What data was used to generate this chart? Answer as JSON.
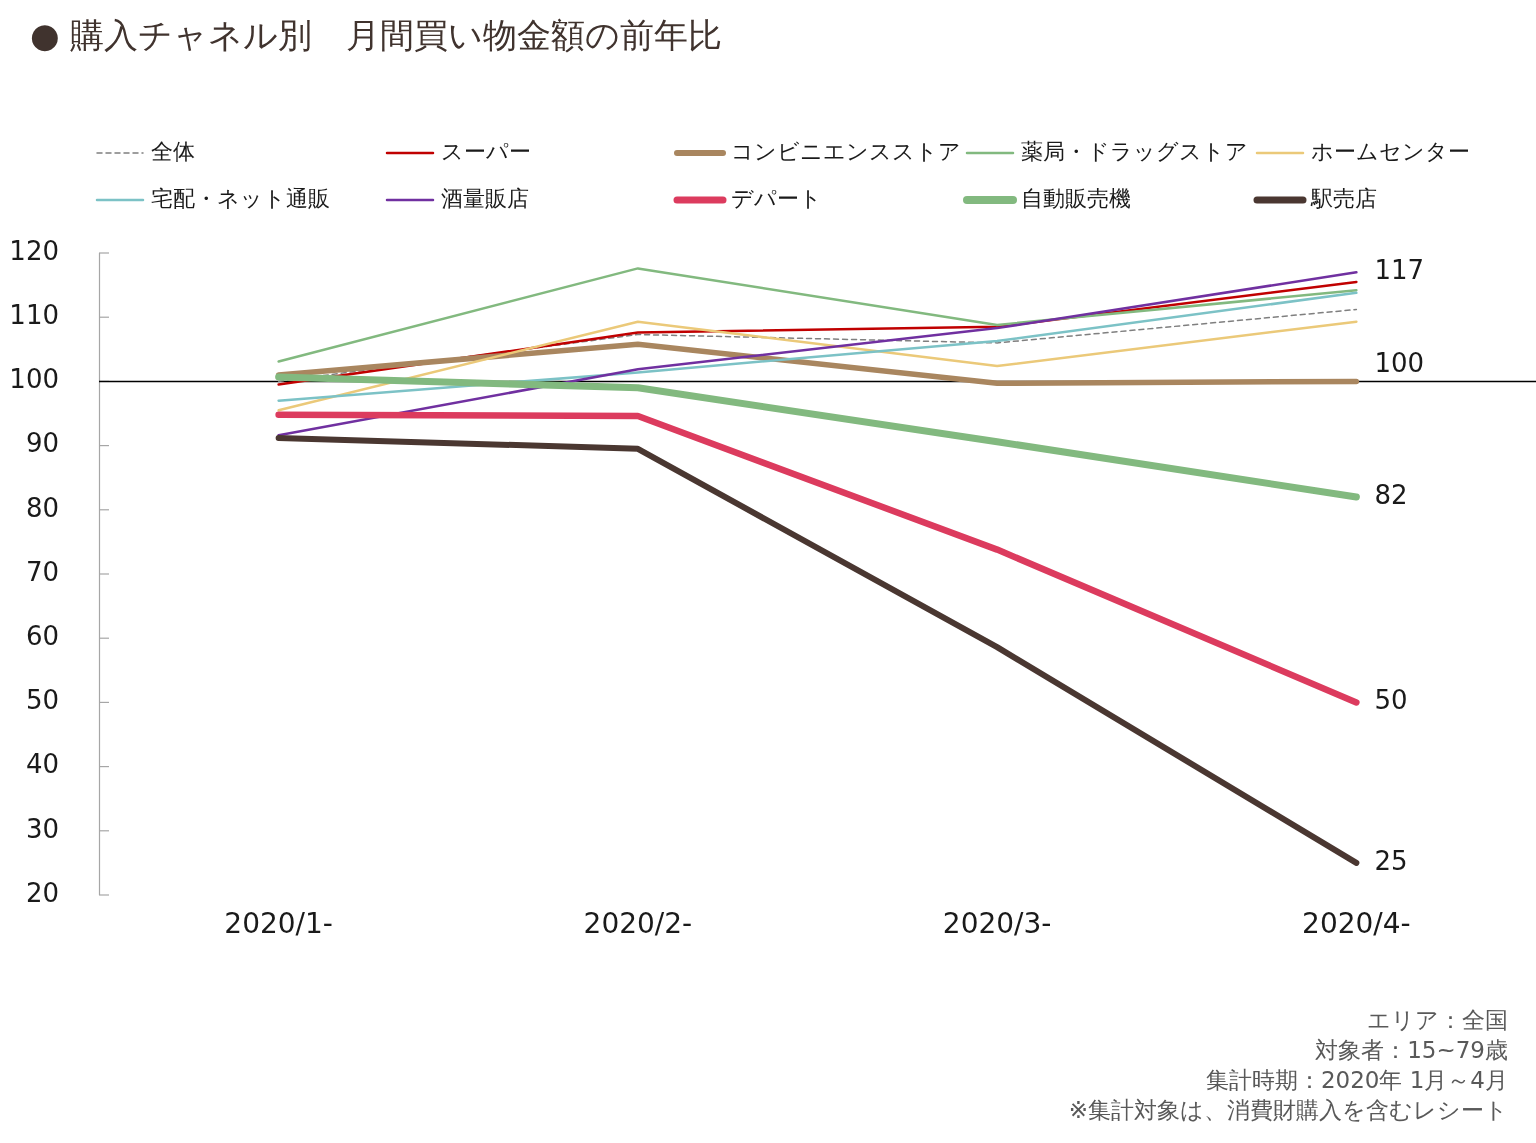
{
  "chart_data": {
    "type": "line",
    "title": "● 購入チャネル別　月間買い物金額の前年比",
    "categories": [
      "2020/1-",
      "2020/2-",
      "2020/3-",
      "2020/4-"
    ],
    "series": [
      {
        "name": "全体",
        "color": "#7f7f7f",
        "line_style": "dashed",
        "values": [
          100,
          107.3,
          106.0,
          111.2
        ]
      },
      {
        "name": "スーパー",
        "color": "#c00000",
        "values": [
          99.5,
          107.6,
          108.5,
          115.5
        ]
      },
      {
        "name": "コンビニエンスストア",
        "color": "#a9865f",
        "values": [
          101.0,
          105.8,
          99.7,
          100
        ],
        "value_labels": [
          null,
          null,
          null,
          "100"
        ]
      },
      {
        "name": "薬局・ドラッグストア",
        "color": "#82b97f",
        "values": [
          103.1,
          117.6,
          108.8,
          114.2
        ]
      },
      {
        "name": "ホームセンター",
        "color": "#ebc979",
        "values": [
          95.5,
          109.3,
          102.4,
          109.3
        ]
      },
      {
        "name": "宅配・ネット通販",
        "color": "#7cc2c6",
        "values": [
          97.0,
          101.4,
          106.3,
          113.8
        ]
      },
      {
        "name": "酒量販店",
        "color": "#7030a0",
        "values": [
          91.6,
          101.9,
          108.3,
          117
        ],
        "value_labels": [
          null,
          null,
          null,
          "117"
        ]
      },
      {
        "name": "デパート",
        "color": "#dc3b5e",
        "values": [
          94.8,
          94.6,
          73.8,
          50
        ],
        "value_labels": [
          null,
          null,
          null,
          "50"
        ]
      },
      {
        "name": "自動販売機",
        "color": "#82b97f",
        "values": [
          100.7,
          99.0,
          90.6,
          82
        ],
        "value_labels": [
          null,
          null,
          null,
          "82"
        ]
      },
      {
        "name": "駅売店",
        "color": "#4a3731",
        "values": [
          91.2,
          89.5,
          58.6,
          25
        ],
        "value_labels": [
          null,
          null,
          null,
          "25"
        ]
      }
    ],
    "ylim": [
      20,
      120
    ],
    "yticks": [
      20,
      30,
      40,
      50,
      60,
      70,
      80,
      90,
      100,
      110,
      120
    ],
    "legend": "top",
    "marker": "none",
    "ref_lines": [
      {
        "axis": "y",
        "value": 100,
        "color": "#000000"
      }
    ],
    "annotations": [
      "エリア：全国",
      "対象者：15~79歳",
      "集計時期：2020年 1月～4月",
      "※集計対象は、消費財購入を含むレシート"
    ]
  }
}
